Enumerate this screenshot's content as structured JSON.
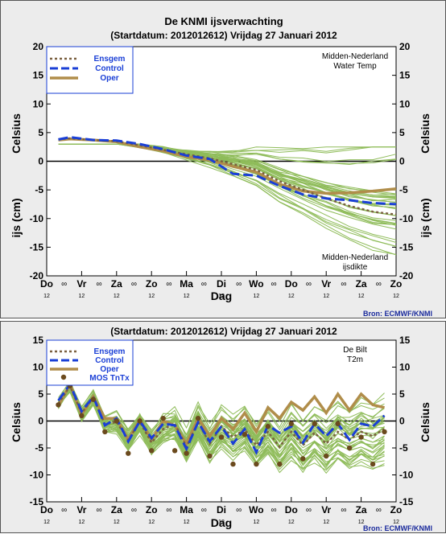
{
  "colors": {
    "ensemble": "#8fbc5a",
    "ensgem": "#7a6040",
    "control": "#1a3fd6",
    "oper": "#b08d4a",
    "mos": "#6b4a1e",
    "axes": "#000000",
    "background": "#ececec",
    "source": "#1a2a9c"
  },
  "top": {
    "title": "De KNMI ijsverwachting",
    "subtitle": "(Startdatum: 2012012612)   Vrijdag   27 Januari   2012",
    "ylabel_top": "Celsius",
    "ylabel_bottom": "ijs (cm)",
    "xlabel": "Dag",
    "region_title_1": "Midden-Nederland",
    "region_title_2": "Water Temp",
    "ice_title_1": "Midden-Nederland",
    "ice_title_2": "ijsdikte",
    "source": "Bron: ECMWF/KNMI",
    "legend": {
      "ensgem": "Ensgem",
      "control": "Control",
      "oper": "Oper"
    },
    "yticks_left": [
      "20",
      "15",
      "10",
      "5",
      "0",
      "-5",
      "-10",
      "-15",
      "-20"
    ],
    "yticks_right": [
      "20",
      "15",
      "10",
      "5",
      "0",
      "-5",
      "-10",
      "-15",
      "-20"
    ]
  },
  "bottom": {
    "subtitle": "(Startdatum: 2012012612)   Vrijdag   27 Januari   2012",
    "ylabel": "Celsius",
    "xlabel": "Dag",
    "station_1": "De Bilt",
    "station_2": "T2m",
    "source": "Bron: ECMWF/KNMI",
    "legend": {
      "ensgem": "Ensgem",
      "control": "Control",
      "oper": "Oper",
      "mos": "MOS TnTx"
    },
    "yticks_left": [
      "15",
      "10",
      "5",
      "0",
      "-5",
      "-10",
      "-15"
    ],
    "yticks_right": [
      "15",
      "10",
      "5",
      "0",
      "-5",
      "-10",
      "-15"
    ]
  },
  "xaxis": {
    "day_labels": [
      "Do",
      "Vr",
      "Za",
      "Zo",
      "Ma",
      "Di",
      "Wo",
      "Do",
      "Vr",
      "Za",
      "Zo"
    ],
    "noon_marker": "∞",
    "hour_label": "12"
  },
  "chart_data": [
    {
      "type": "line",
      "title": "De KNMI ijsverwachting",
      "ylabel": "Celsius",
      "xlabel": "Dag",
      "ylim": [
        -20,
        20
      ],
      "x_unit": "days from start (Do 12)",
      "xlim": [
        0,
        15
      ],
      "series": [
        {
          "name": "Ensgem",
          "x": [
            0.5,
            1,
            2,
            3,
            4,
            5,
            6,
            7,
            8,
            9,
            10,
            11,
            12,
            13,
            14,
            15
          ],
          "values": [
            3.8,
            4.0,
            3.7,
            3.5,
            2.8,
            2.0,
            1.2,
            0.5,
            -0.5,
            -1.5,
            -3.5,
            -5.0,
            -6.5,
            -7.8,
            -8.8,
            -9.3
          ]
        },
        {
          "name": "Control",
          "x": [
            0.5,
            1,
            2,
            3,
            4,
            5,
            6,
            7,
            8,
            9,
            10,
            11,
            12,
            13,
            14,
            15
          ],
          "values": [
            3.8,
            4.2,
            3.7,
            3.6,
            3.0,
            2.1,
            1.0,
            0.4,
            -2.2,
            -2.5,
            -4.3,
            -5.8,
            -6.5,
            -6.8,
            -7.3,
            -7.5
          ]
        },
        {
          "name": "Oper",
          "x": [
            0.5,
            1,
            2,
            3,
            4,
            5,
            6,
            7,
            8,
            9,
            10,
            11,
            12,
            13,
            14,
            15
          ],
          "values": [
            3.7,
            3.9,
            3.7,
            3.4,
            2.5,
            1.8,
            0.8,
            0.2,
            -0.9,
            -1.9,
            -4.0,
            -5.2,
            -5.6,
            -5.5,
            -5.2,
            -4.8
          ]
        }
      ]
    },
    {
      "type": "line",
      "title": "(Startdatum: 2012012612)   Vrijdag   27 Januari   2012",
      "ylabel": "Celsius",
      "xlabel": "Dag",
      "ylim": [
        -15,
        15
      ],
      "x_unit": "days from start (Do 12)",
      "xlim": [
        0,
        15
      ],
      "series": [
        {
          "name": "Ensgem",
          "x": [
            0.5,
            1,
            1.5,
            2,
            2.5,
            3,
            3.5,
            4,
            4.5,
            5,
            5.5,
            6,
            6.5,
            7,
            7.5,
            8,
            8.5,
            9,
            9.5,
            10,
            10.5,
            11,
            11.5,
            12,
            12.5,
            13,
            13.5,
            14,
            14.5
          ],
          "values": [
            3.2,
            6.5,
            1.5,
            4.3,
            -0.6,
            -0.2,
            -3.5,
            -0.2,
            -4.0,
            -1.5,
            -0.5,
            -4.8,
            -0.2,
            -4.2,
            -1.0,
            -3.0,
            -1.5,
            -4.5,
            -2.0,
            -4.8,
            -2.0,
            -4.5,
            -2.2,
            -4.2,
            -2.0,
            -3.5,
            -2.0,
            -2.8,
            -1.5
          ]
        },
        {
          "name": "Control",
          "x": [
            0.5,
            1,
            1.5,
            2,
            2.5,
            3,
            3.5,
            4,
            4.5,
            5,
            5.5,
            6,
            6.5,
            7,
            7.5,
            8,
            8.5,
            9,
            9.5,
            10,
            10.5,
            11,
            11.5,
            12,
            12.5,
            13,
            13.5,
            14,
            14.5
          ],
          "values": [
            3.8,
            6.8,
            1.8,
            4.5,
            -0.8,
            0.5,
            -3.8,
            0.0,
            -3.2,
            -0.5,
            -0.8,
            -5.2,
            -0.2,
            -3.8,
            -1.0,
            -4.2,
            -1.5,
            -5.8,
            -0.8,
            -2.2,
            -1.0,
            -4.0,
            -0.5,
            -2.8,
            -0.5,
            -3.5,
            -0.5,
            -1.0,
            1.0
          ]
        },
        {
          "name": "Oper",
          "x": [
            0.5,
            1,
            1.5,
            2,
            2.5,
            3,
            3.5,
            4,
            4.5,
            5,
            5.5,
            6,
            6.5,
            7,
            7.5,
            8,
            8.5,
            9,
            9.5,
            10,
            10.5,
            11,
            11.5,
            12,
            12.5,
            13,
            13.5,
            14,
            14.5
          ],
          "values": [
            2.8,
            6.8,
            1.2,
            4.5,
            0.5,
            0.5,
            -3.5,
            0.3,
            -3.5,
            0.0,
            -0.8,
            -4.2,
            0.5,
            -2.8,
            0.5,
            -1.5,
            1.5,
            -2.0,
            2.5,
            0.5,
            3.5,
            2.0,
            4.5,
            1.5,
            5.0,
            2.0,
            5.0,
            3.0,
            2.5
          ]
        },
        {
          "name": "MOS TnTx",
          "x": [
            0.5,
            1,
            1.5,
            2,
            2.5,
            3,
            3.5,
            4,
            4.5,
            5,
            5.5,
            6,
            6.5,
            7,
            7.5,
            8,
            8.5,
            9,
            9.5,
            10,
            10.5,
            11,
            11.5,
            12,
            12.5,
            13,
            13.5,
            14,
            14.5
          ],
          "values": [
            3.0,
            6.5,
            1.0,
            4.0,
            -2.0,
            0.0,
            -6.0,
            0.0,
            -5.5,
            0.5,
            -5.5,
            -6.0,
            0.5,
            -6.5,
            -3.0,
            -8.0,
            -2.5,
            -8.0,
            -1.0,
            -8.0,
            -0.5,
            -7.0,
            -0.5,
            -6.5,
            -0.5,
            -5.0,
            -3.0,
            -8.0,
            -2.0
          ]
        }
      ]
    }
  ]
}
